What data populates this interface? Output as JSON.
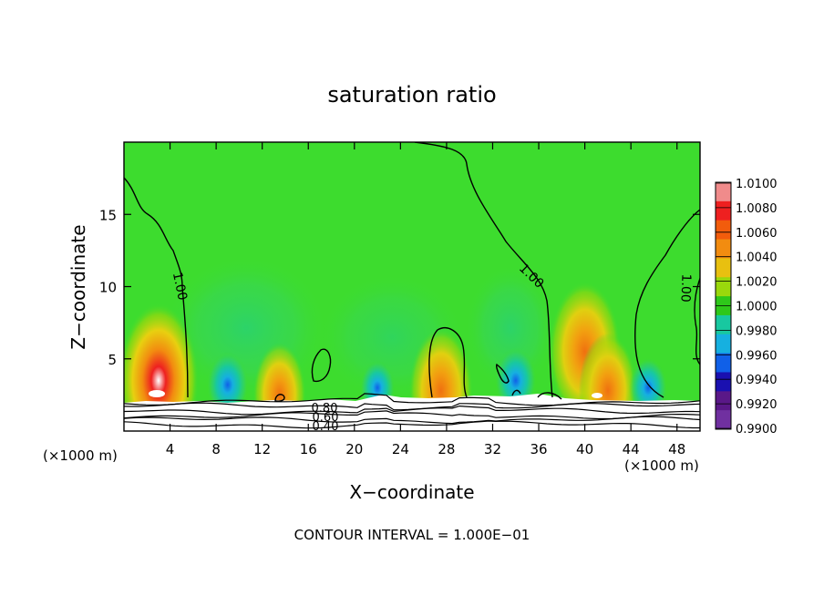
{
  "chart_data": {
    "type": "heatmap",
    "title": "saturation ratio",
    "xlabel": "X−coordinate",
    "ylabel": "Z−coordinate",
    "x_unit_left": "(×1000 m)",
    "x_unit_right": "(×1000 m)",
    "footer": "CONTOUR INTERVAL = 1.000E−01",
    "xlim": [
      0,
      50
    ],
    "ylim": [
      0,
      20
    ],
    "x_ticks": [
      4,
      8,
      12,
      16,
      20,
      24,
      28,
      32,
      36,
      40,
      44,
      48
    ],
    "x_tick_labels": [
      "4",
      "8",
      "12",
      "16",
      "20",
      "24",
      "28",
      "32",
      "36",
      "40",
      "44",
      "48"
    ],
    "y_ticks": [
      5,
      10,
      15
    ],
    "y_tick_labels": [
      "5",
      "10",
      "15"
    ],
    "colorbar": {
      "labels": [
        "1.0100",
        "1.0080",
        "1.0060",
        "1.0040",
        "1.0020",
        "1.0000",
        "0.9980",
        "0.9960",
        "0.9940",
        "0.9920",
        "0.9900"
      ],
      "colors": [
        "#f08b8b",
        "#ee2020",
        "#f25c0c",
        "#f28c10",
        "#e8c010",
        "#9ad80c",
        "#2ec81a",
        "#18c8a0",
        "#16b0e0",
        "#1060e8",
        "#1a10b0",
        "#5a1888",
        "#7030a0"
      ]
    },
    "background_value_color": "#3ddc2e",
    "contour_labels": [
      "1.00",
      "1.00",
      "1.00",
      "0.80",
      "0.60",
      "0.40"
    ],
    "anomalies": [
      {
        "x": 3,
        "z": 3.5,
        "kind": "supersaturated",
        "strength": 1.0
      },
      {
        "x": 27.5,
        "z": 2.8,
        "kind": "supersaturated",
        "strength": 0.7
      },
      {
        "x": 40,
        "z": 5.5,
        "kind": "supersaturated",
        "strength": 0.85
      },
      {
        "x": 42,
        "z": 2.8,
        "kind": "supersaturated",
        "strength": 0.6
      },
      {
        "x": 13.5,
        "z": 2.5,
        "kind": "supersaturated",
        "strength": 0.5
      },
      {
        "x": 9,
        "z": 3.2,
        "kind": "subsaturated",
        "strength": 0.6
      },
      {
        "x": 22,
        "z": 3.0,
        "kind": "subsaturated",
        "strength": 0.4
      },
      {
        "x": 34,
        "z": 3.5,
        "kind": "subsaturated",
        "strength": 0.6
      },
      {
        "x": 45.5,
        "z": 3.0,
        "kind": "subsaturated",
        "strength": 0.5
      }
    ]
  }
}
